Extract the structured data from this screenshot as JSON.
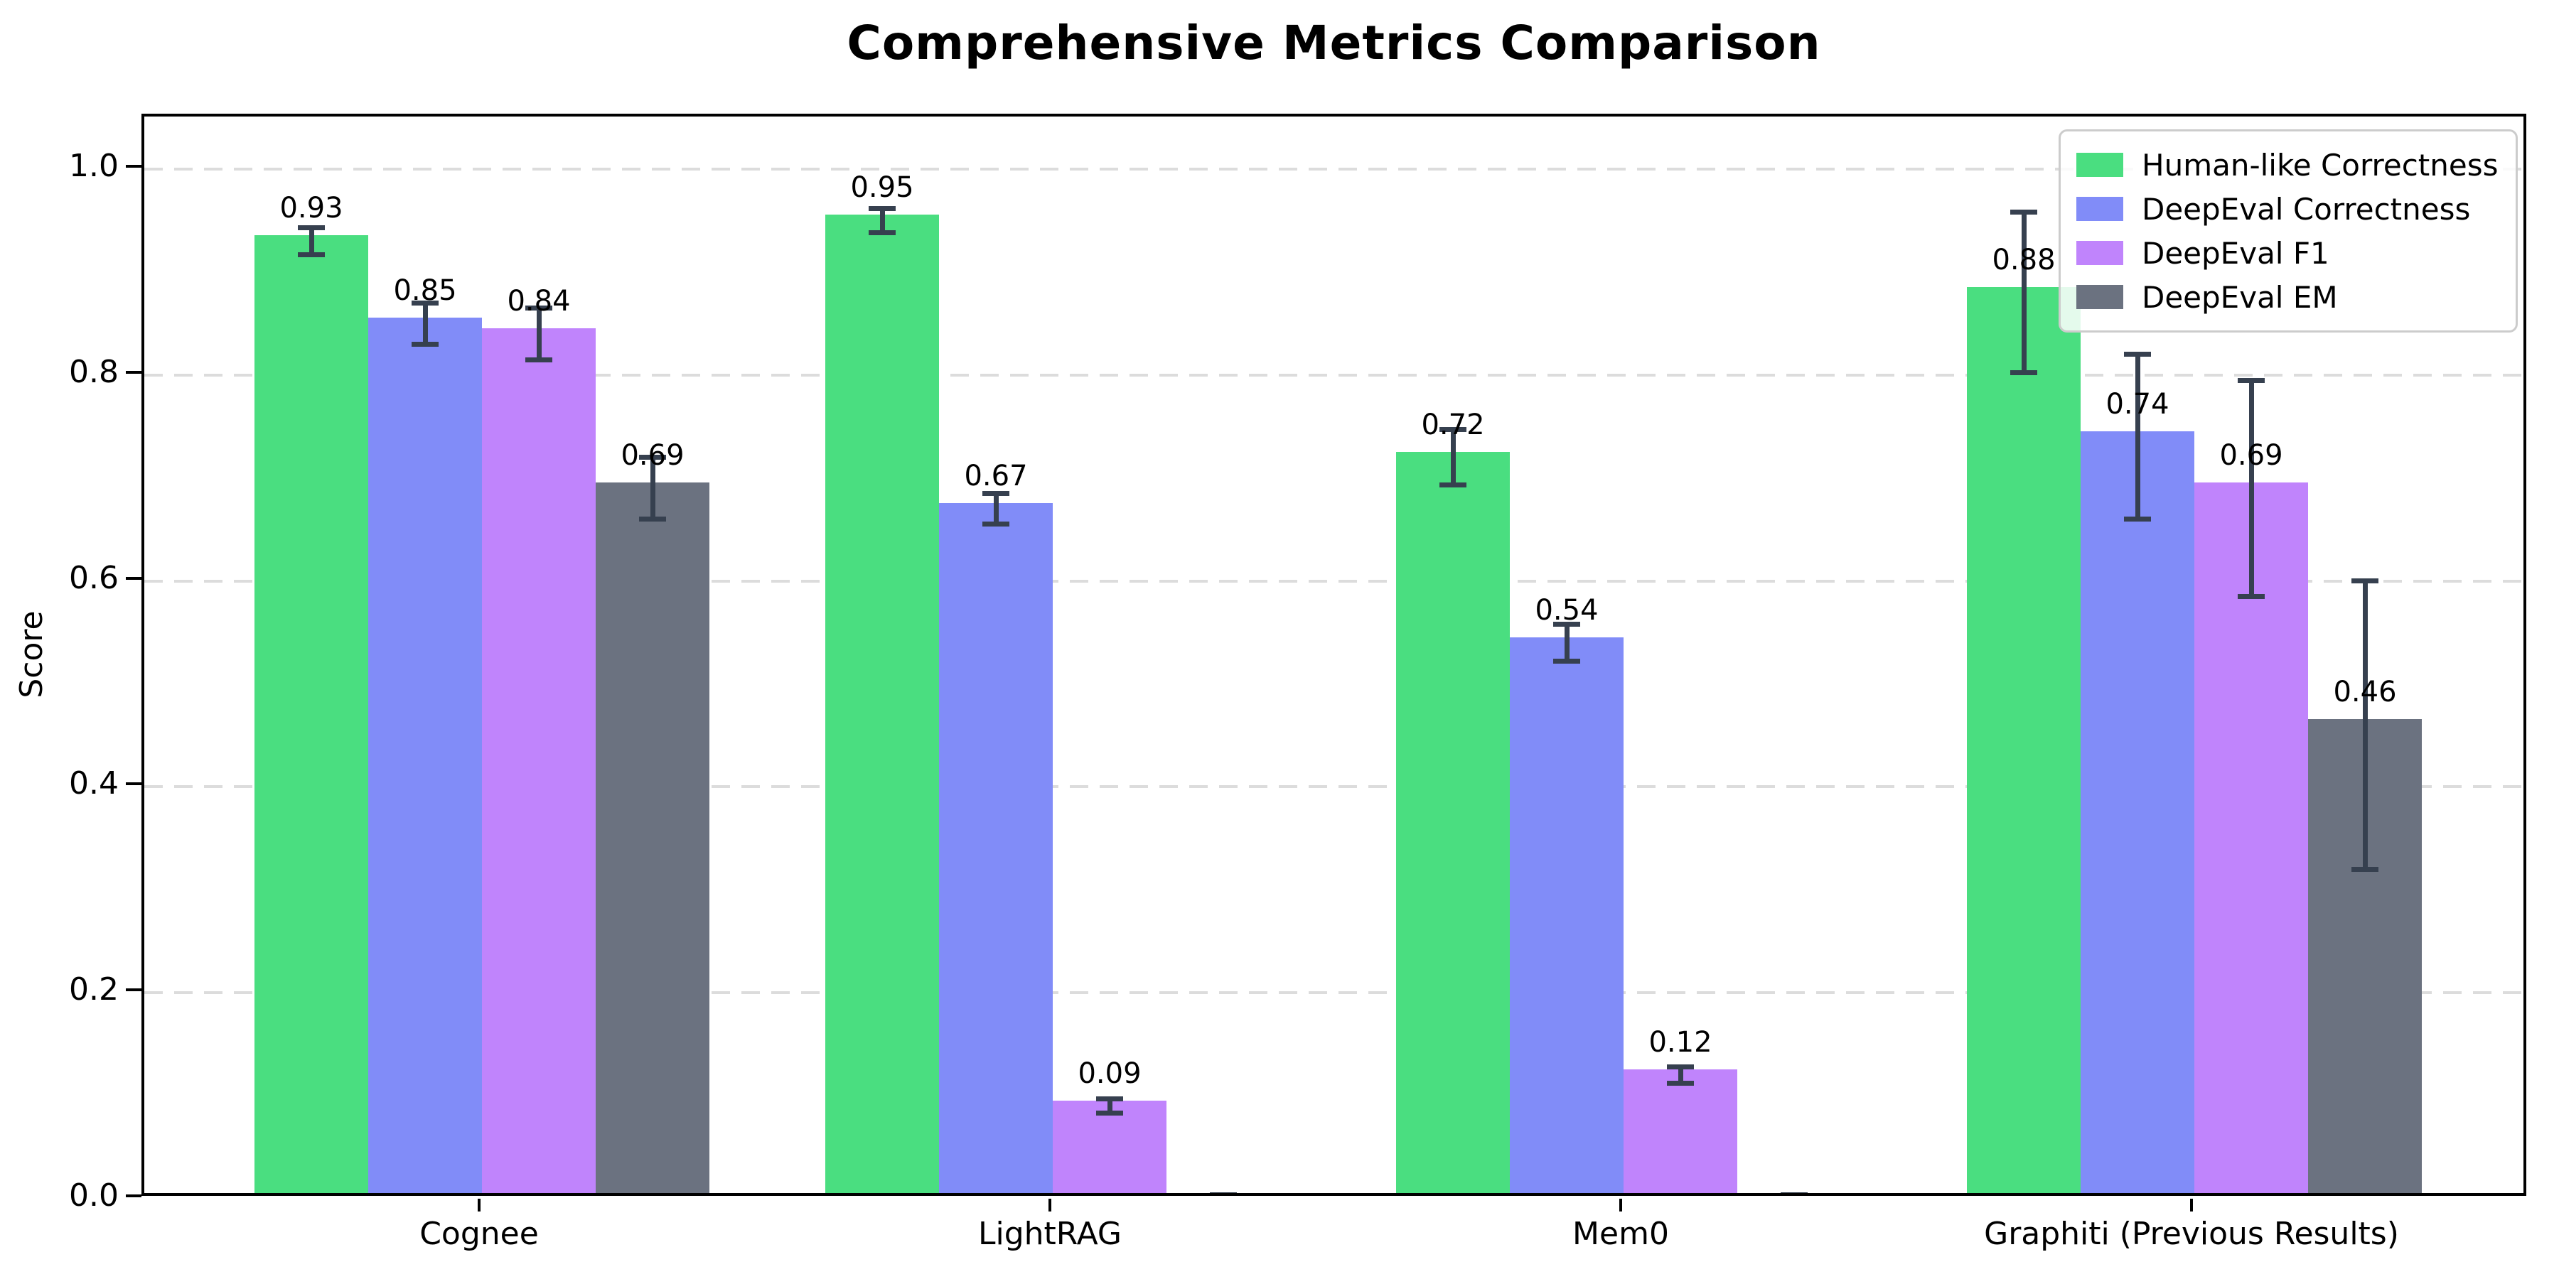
{
  "chart_data": {
    "type": "bar",
    "title": "Comprehensive Metrics Comparison",
    "xlabel": "",
    "ylabel": "Score",
    "categories": [
      "Cognee",
      "LightRAG",
      "Mem0",
      "Graphiti (Previous Results)"
    ],
    "series": [
      {
        "name": "Human-like Correctness",
        "color": "#4ade80",
        "values": [
          0.93,
          0.95,
          0.72,
          0.88
        ],
        "errors": [
          0.013,
          0.012,
          0.027,
          0.078
        ],
        "labels": [
          "0.93",
          "0.95",
          "0.72",
          "0.88"
        ]
      },
      {
        "name": "DeepEval Correctness",
        "color": "#818cf8",
        "values": [
          0.85,
          0.67,
          0.54,
          0.74
        ],
        "errors": [
          0.02,
          0.015,
          0.018,
          0.08
        ],
        "labels": [
          "0.85",
          "0.67",
          "0.54",
          "0.74"
        ]
      },
      {
        "name": "DeepEval F1",
        "color": "#c084fc",
        "values": [
          0.84,
          0.09,
          0.12,
          0.69
        ],
        "errors": [
          0.025,
          0.007,
          0.008,
          0.105
        ],
        "labels": [
          "0.84",
          "0.09",
          "0.12",
          "0.69"
        ]
      },
      {
        "name": "DeepEval EM",
        "color": "#6b7280",
        "values": [
          0.69,
          0.0,
          0.0,
          0.46
        ],
        "errors": [
          0.03,
          0.004,
          0.004,
          0.14
        ],
        "labels": [
          "0.69",
          "",
          "",
          "0.46"
        ]
      }
    ],
    "yticks": [
      0.0,
      0.2,
      0.4,
      0.6,
      0.8,
      1.0
    ],
    "ylim": [
      0,
      1.05
    ],
    "grid": "horizontal-dashed",
    "gridline_color": "#dcdcdc",
    "errorbar_color": "#36404f",
    "legend_position": "upper right",
    "axis_color": "#000000"
  }
}
